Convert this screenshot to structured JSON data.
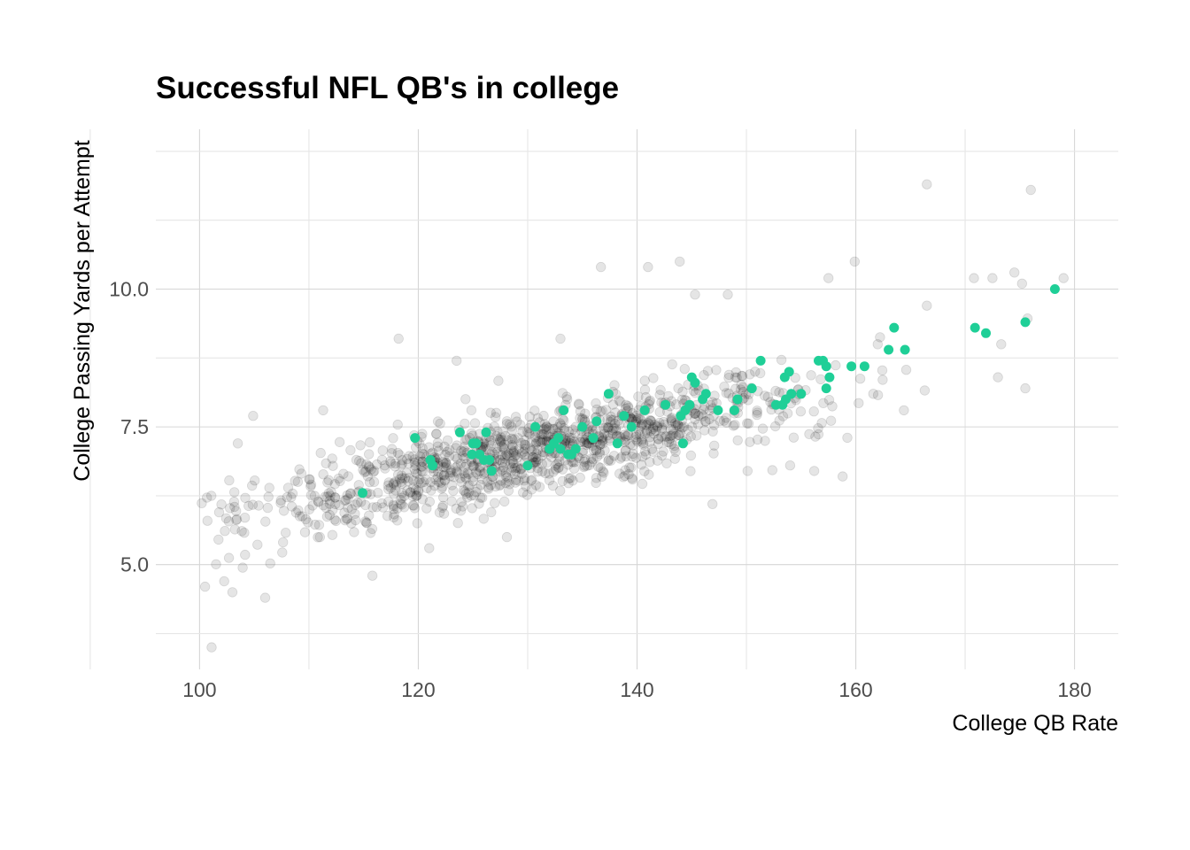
{
  "chart_data": {
    "type": "scatter",
    "title": "Successful NFL QB's in college",
    "xlabel": "College QB Rate",
    "ylabel": "College Passing Yards per Attempt",
    "xlim": [
      96,
      184
    ],
    "ylim": [
      3.1,
      12.9
    ],
    "x_ticks": [
      100,
      120,
      140,
      160,
      180
    ],
    "x_tick_labels": [
      "100",
      "120",
      "140",
      "160",
      "180"
    ],
    "y_ticks": [
      5.0,
      7.5,
      10.0
    ],
    "y_tick_labels": [
      "5.0",
      "7.5",
      "10.0"
    ],
    "grid": true,
    "legend": "none",
    "colors": {
      "background_points": "#000000",
      "highlight_points": "#1fcf97"
    },
    "background_trend": {
      "slope": 0.0435,
      "intercept": 1.35,
      "x_range": [
        100,
        179
      ],
      "count": 1150
    },
    "background_outliers": [
      [
        166.5,
        11.9
      ],
      [
        176.0,
        11.8
      ],
      [
        136.7,
        10.4
      ],
      [
        143.9,
        10.5
      ],
      [
        159.9,
        10.5
      ],
      [
        157.5,
        10.2
      ],
      [
        170.8,
        10.2
      ],
      [
        172.5,
        10.2
      ],
      [
        174.5,
        10.3
      ],
      [
        179.0,
        10.2
      ],
      [
        175.2,
        10.1
      ],
      [
        118.2,
        9.1
      ],
      [
        148.3,
        9.9
      ],
      [
        145.3,
        9.9
      ],
      [
        111.3,
        7.8
      ],
      [
        104.9,
        7.7
      ],
      [
        103.5,
        7.2
      ],
      [
        101.1,
        3.5
      ],
      [
        100.5,
        4.6
      ],
      [
        103.0,
        4.5
      ],
      [
        106.0,
        4.4
      ],
      [
        115.8,
        4.8
      ],
      [
        128.1,
        5.5
      ],
      [
        146.9,
        6.1
      ],
      [
        150.1,
        6.7
      ],
      [
        156.2,
        6.7
      ],
      [
        158.8,
        6.6
      ],
      [
        154.0,
        6.8
      ],
      [
        164.4,
        7.8
      ],
      [
        173.0,
        8.4
      ],
      [
        175.5,
        8.2
      ],
      [
        161.6,
        8.1
      ],
      [
        123.5,
        8.7
      ],
      [
        133.0,
        9.1
      ],
      [
        141.0,
        10.4
      ],
      [
        162.0,
        9.0
      ],
      [
        166.5,
        9.7
      ],
      [
        173.3,
        9.0
      ],
      [
        121.0,
        5.3
      ],
      [
        111.0,
        5.5
      ]
    ],
    "highlight_points": [
      [
        114.9,
        6.3
      ],
      [
        119.7,
        7.3
      ],
      [
        121.1,
        6.9
      ],
      [
        121.3,
        6.8
      ],
      [
        123.8,
        7.4
      ],
      [
        124.9,
        7.0
      ],
      [
        125.0,
        7.2
      ],
      [
        125.3,
        7.2
      ],
      [
        125.6,
        7.0
      ],
      [
        126.0,
        6.9
      ],
      [
        126.2,
        7.4
      ],
      [
        126.5,
        6.9
      ],
      [
        126.7,
        6.7
      ],
      [
        130.0,
        6.8
      ],
      [
        130.7,
        7.5
      ],
      [
        132.0,
        7.1
      ],
      [
        132.4,
        7.2
      ],
      [
        132.8,
        7.3
      ],
      [
        133.0,
        7.1
      ],
      [
        133.3,
        7.8
      ],
      [
        133.7,
        7.0
      ],
      [
        134.0,
        7.0
      ],
      [
        134.4,
        7.1
      ],
      [
        135.0,
        7.5
      ],
      [
        136.0,
        7.3
      ],
      [
        136.3,
        7.6
      ],
      [
        137.4,
        8.1
      ],
      [
        138.2,
        7.2
      ],
      [
        138.8,
        7.7
      ],
      [
        139.5,
        7.5
      ],
      [
        140.7,
        7.8
      ],
      [
        142.6,
        7.9
      ],
      [
        144.0,
        7.7
      ],
      [
        144.2,
        7.2
      ],
      [
        144.4,
        7.8
      ],
      [
        144.8,
        7.9
      ],
      [
        145.0,
        8.4
      ],
      [
        145.3,
        8.3
      ],
      [
        146.0,
        8.0
      ],
      [
        146.3,
        8.1
      ],
      [
        147.4,
        7.8
      ],
      [
        148.9,
        7.8
      ],
      [
        149.2,
        8.0
      ],
      [
        150.5,
        8.2
      ],
      [
        151.3,
        8.7
      ],
      [
        152.7,
        7.9
      ],
      [
        153.3,
        7.9
      ],
      [
        153.5,
        8.4
      ],
      [
        153.6,
        8.0
      ],
      [
        153.9,
        8.5
      ],
      [
        154.1,
        8.1
      ],
      [
        155.0,
        8.1
      ],
      [
        156.6,
        8.7
      ],
      [
        157.0,
        8.7
      ],
      [
        157.3,
        8.6
      ],
      [
        157.3,
        8.2
      ],
      [
        157.6,
        8.4
      ],
      [
        159.6,
        8.6
      ],
      [
        160.8,
        8.6
      ],
      [
        163.0,
        8.9
      ],
      [
        163.5,
        9.3
      ],
      [
        164.5,
        8.9
      ],
      [
        170.9,
        9.3
      ],
      [
        171.9,
        9.2
      ],
      [
        175.5,
        9.4
      ],
      [
        178.2,
        10.0
      ]
    ]
  }
}
